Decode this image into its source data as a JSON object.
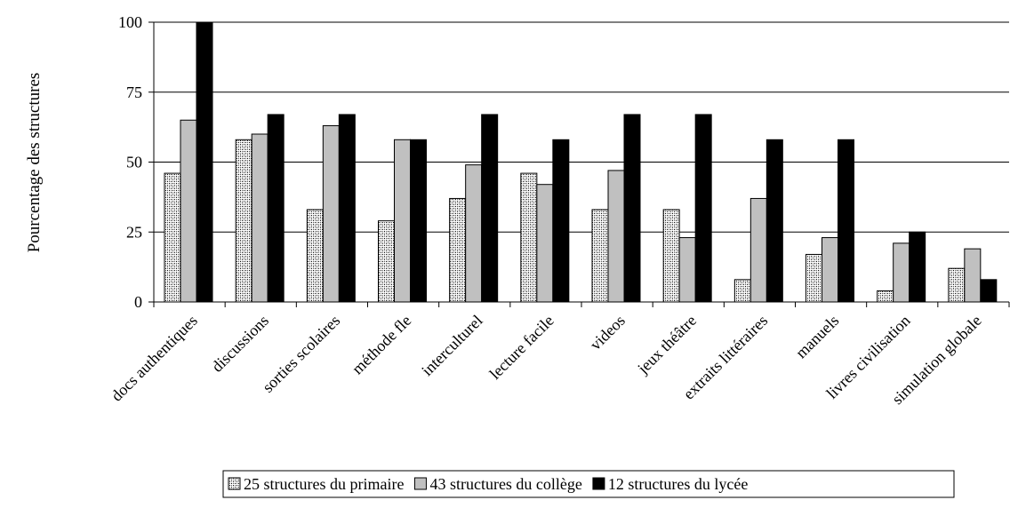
{
  "chart_data": {
    "type": "bar",
    "title": "",
    "xlabel": "",
    "ylabel": "Pourcentage des structures",
    "ylim": [
      0,
      100
    ],
    "yticks": [
      0,
      25,
      50,
      75,
      100
    ],
    "grid": true,
    "legend_position": "bottom",
    "categories": [
      "docs authentiques",
      "discussions",
      "sorties scolaires",
      "méthode fle",
      "interculturel",
      "lecture facile",
      "videos",
      "jeux théâtre",
      "extraits littéraires",
      "manuels",
      "livres civilisation",
      "simulation globale"
    ],
    "series": [
      {
        "name": "25 structures du primaire",
        "fill": "hatched",
        "color": "#ffffff",
        "values": [
          46,
          58,
          33,
          29,
          37,
          46,
          33,
          33,
          8,
          17,
          4,
          12
        ]
      },
      {
        "name": "43 structures du collège",
        "fill": "solid",
        "color": "#c0c0c0",
        "values": [
          65,
          60,
          63,
          58,
          49,
          42,
          47,
          23,
          37,
          23,
          21,
          19
        ]
      },
      {
        "name": "12 structures du lycée",
        "fill": "solid",
        "color": "#000000",
        "values": [
          100,
          67,
          67,
          58,
          67,
          58,
          67,
          67,
          58,
          58,
          25,
          8
        ]
      }
    ]
  }
}
